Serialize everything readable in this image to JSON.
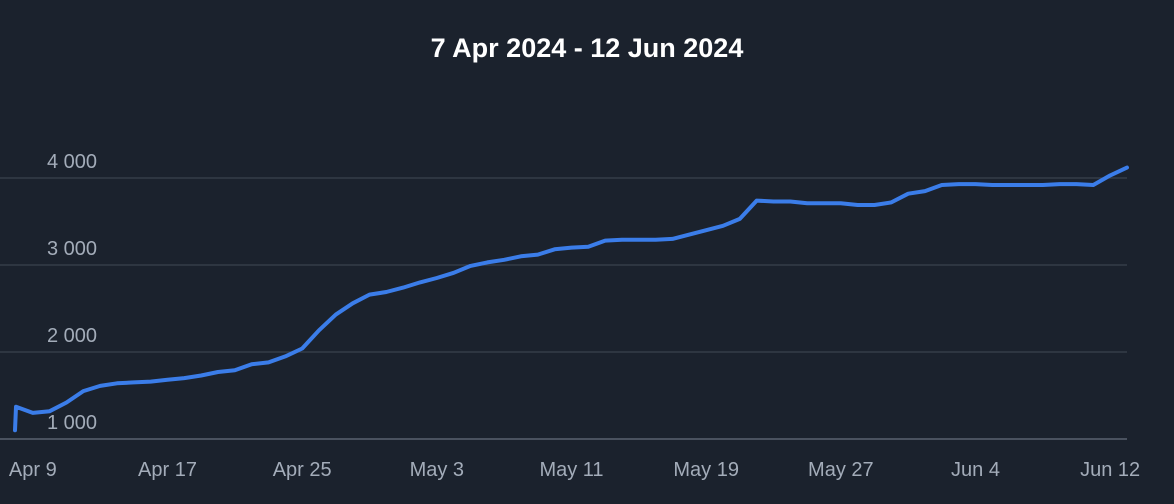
{
  "title": "7 Apr 2024 - 12 Jun 2024",
  "colors": {
    "background": "#1b222d",
    "line": "#3b7de9",
    "grid": "#3a424e",
    "axis": "#5a6270",
    "tick_text": "#a3acb9",
    "title_text": "#ffffff"
  },
  "chart_data": {
    "type": "line",
    "title": "7 Apr 2024 - 12 Jun 2024",
    "xlabel": "",
    "ylabel": "",
    "x_tick_labels": [
      "Apr 9",
      "Apr 17",
      "Apr 25",
      "May 3",
      "May 11",
      "May 19",
      "May 27",
      "Jun 4",
      "Jun 12"
    ],
    "y_tick_labels": [
      "1 000",
      "2 000",
      "3 000",
      "4 000"
    ],
    "y_ticks": [
      1000,
      2000,
      3000,
      4000
    ],
    "xlim": [
      "2024-04-08",
      "2024-06-13"
    ],
    "ylim": [
      1000,
      4000
    ],
    "grid": true,
    "legend": "none",
    "series": [
      {
        "x": [
          "2024-04-08",
          "2024-04-09",
          "2024-04-10",
          "2024-04-11",
          "2024-04-12",
          "2024-04-13",
          "2024-04-14",
          "2024-04-15",
          "2024-04-16",
          "2024-04-17",
          "2024-04-18",
          "2024-04-19",
          "2024-04-20",
          "2024-04-21",
          "2024-04-22",
          "2024-04-23",
          "2024-04-24",
          "2024-04-25",
          "2024-04-26",
          "2024-04-27",
          "2024-04-28",
          "2024-04-29",
          "2024-04-30",
          "2024-05-01",
          "2024-05-02",
          "2024-05-03",
          "2024-05-04",
          "2024-05-05",
          "2024-05-06",
          "2024-05-07",
          "2024-05-08",
          "2024-05-09",
          "2024-05-10",
          "2024-05-11",
          "2024-05-12",
          "2024-05-13",
          "2024-05-14",
          "2024-05-15",
          "2024-05-16",
          "2024-05-17",
          "2024-05-18",
          "2024-05-19",
          "2024-05-20",
          "2024-05-21",
          "2024-05-22",
          "2024-05-23",
          "2024-05-24",
          "2024-05-25",
          "2024-05-26",
          "2024-05-27",
          "2024-05-28",
          "2024-05-29",
          "2024-05-30",
          "2024-05-31",
          "2024-06-01",
          "2024-06-02",
          "2024-06-03",
          "2024-06-04",
          "2024-06-05",
          "2024-06-06",
          "2024-06-07",
          "2024-06-08",
          "2024-06-09",
          "2024-06-10",
          "2024-06-11",
          "2024-06-12",
          "2024-06-13"
        ],
        "values": [
          1370,
          1300,
          1320,
          1420,
          1550,
          1610,
          1640,
          1650,
          1660,
          1680,
          1700,
          1730,
          1770,
          1790,
          1860,
          1880,
          1950,
          2040,
          2250,
          2430,
          2560,
          2660,
          2690,
          2740,
          2800,
          2850,
          2910,
          2990,
          3030,
          3060,
          3100,
          3120,
          3180,
          3200,
          3210,
          3280,
          3290,
          3290,
          3290,
          3300,
          3350,
          3400,
          3450,
          3530,
          3740,
          3730,
          3730,
          3710,
          3710,
          3710,
          3690,
          3690,
          3720,
          3820,
          3850,
          3920,
          3930,
          3930,
          3920,
          3920,
          3920,
          3920,
          3930,
          3930,
          3920,
          4030,
          4120
        ]
      }
    ]
  }
}
